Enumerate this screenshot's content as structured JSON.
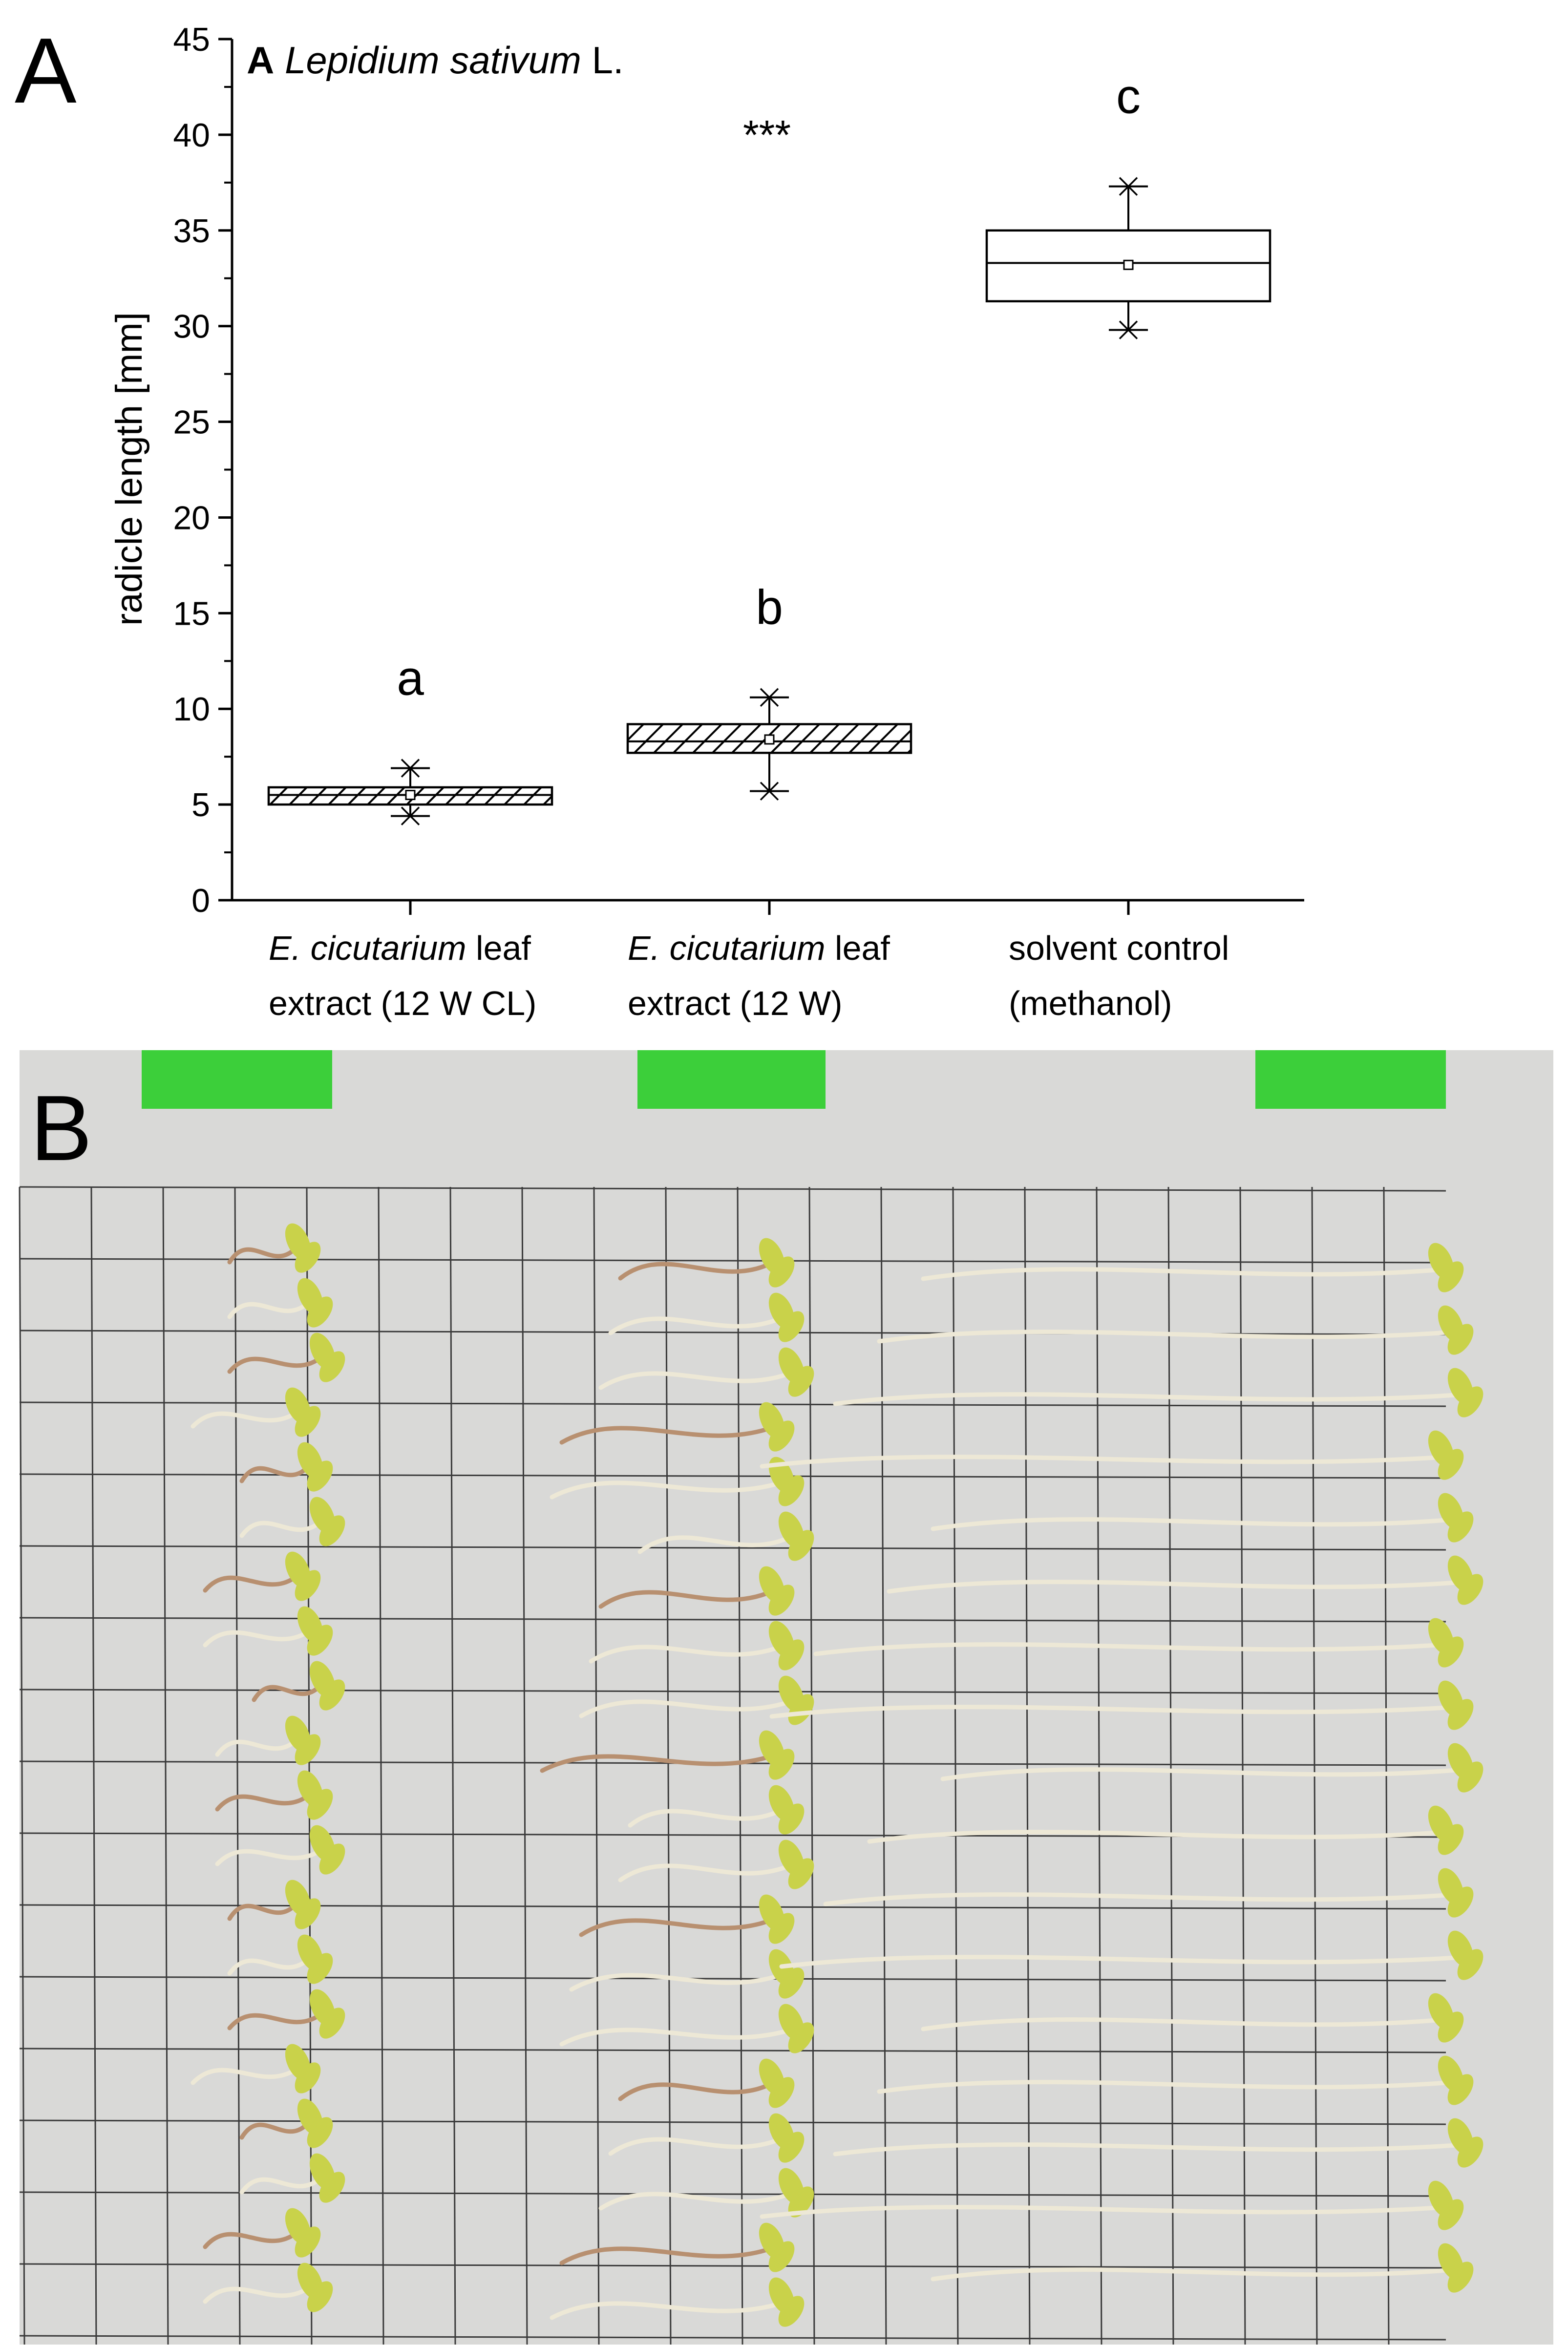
{
  "panel_labels": {
    "a": "A",
    "b": "B"
  },
  "chart_data": {
    "type": "box",
    "title_letter": "A",
    "title_species": "Lepidium sativum",
    "title_suffix": "L.",
    "ylabel": "radicle length [mm]",
    "ylim": [
      0,
      45
    ],
    "yticks": [
      0,
      5,
      10,
      15,
      20,
      25,
      30,
      35,
      40,
      45
    ],
    "significance": "***",
    "groups": [
      {
        "label_italic": "E. cicutarium",
        "label_rest": " leaf",
        "label_line2": "extract (12 W CL)",
        "q1": 5.0,
        "median": 5.5,
        "q3": 5.9,
        "mean": 5.5,
        "whisker_low": 4.4,
        "whisker_high": 6.9,
        "letter": "a",
        "hatched": true
      },
      {
        "label_italic": "E. cicutarium",
        "label_rest": " leaf",
        "label_line2": "extract (12 W)",
        "q1": 7.7,
        "median": 8.3,
        "q3": 9.2,
        "mean": 8.4,
        "whisker_low": 5.7,
        "whisker_high": 10.6,
        "letter": "b",
        "hatched": true
      },
      {
        "label_italic": "",
        "label_rest": "solvent control",
        "label_line2": "(methanol)",
        "q1": 31.3,
        "median": 33.3,
        "q3": 35.0,
        "mean": 33.2,
        "whisker_low": 29.8,
        "whisker_high": 37.3,
        "letter": "c",
        "hatched": false
      }
    ]
  },
  "photo": {
    "background": "#d9d9d7",
    "grid_color": "#3a3a3a",
    "tag_color": "#3ccf3a",
    "seedling_root_color": "#ede8d6",
    "seedling_leaf_color": "#c9d24a",
    "seedling_brown_color": "#b89070"
  }
}
